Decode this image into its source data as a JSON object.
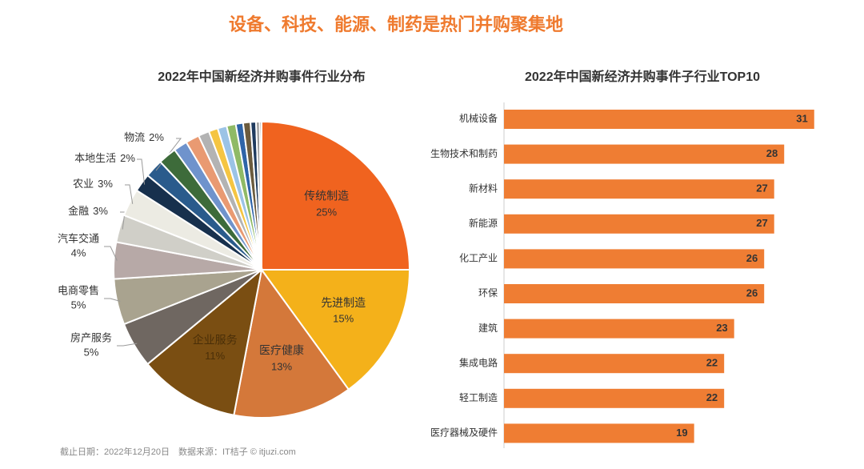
{
  "title": "设备、科技、能源、制药是热门并购聚集地",
  "footnote": "截止日期：2022年12月20日　数据来源：IT桔子 © itjuzi.com",
  "chart_data": [
    {
      "type": "pie",
      "title": "2022年中国新经济并购事件行业分布",
      "categories": [
        "传统制造",
        "先进制造",
        "医疗健康",
        "企业服务",
        "房产服务",
        "电商零售",
        "汽车交通",
        "金融",
        "农业",
        "本地生活",
        "物流",
        null,
        null,
        null,
        null,
        null,
        null,
        null,
        null,
        null,
        null,
        null,
        null
      ],
      "values": [
        25,
        15,
        13,
        11,
        5,
        5,
        4,
        3,
        3,
        2,
        2,
        2,
        1.5,
        1.5,
        1.2,
        1,
        1,
        1,
        0.8,
        0.8,
        0.6,
        0.4,
        0.2
      ],
      "value_labels": [
        "25%",
        "15%",
        "13%",
        "11%",
        "5%",
        "5%",
        "4%",
        "3%",
        "3%",
        "2%",
        "2%",
        null,
        null,
        null,
        null,
        null,
        null,
        null,
        null,
        null,
        null,
        null,
        null
      ],
      "colors": [
        "#f0631f",
        "#f4b11a",
        "#d4783a",
        "#7a4e12",
        "#6f6761",
        "#a9a38f",
        "#b7a9a7",
        "#d0cfc8",
        "#ecebe3",
        "#17304d",
        "#2a5b8c",
        "#3d6b3a",
        "#6f93cc",
        "#e99a72",
        "#b3b3b3",
        "#f5c542",
        "#9bc3e6",
        "#8fba66",
        "#2e64a8",
        "#6b5b3e",
        "#1f3b5f",
        "#999999",
        "#444444"
      ]
    },
    {
      "type": "bar",
      "orientation": "horizontal",
      "title": "2022年中国新经济并购事件子行业TOP10",
      "categories": [
        "机械设备",
        "生物技术和制药",
        "新材料",
        "新能源",
        "化工产业",
        "环保",
        "建筑",
        "集成电路",
        "轻工制造",
        "医疗器械及硬件"
      ],
      "values": [
        31,
        28,
        27,
        27,
        26,
        26,
        23,
        22,
        22,
        19
      ],
      "color": "#ef7d33",
      "xlim": [
        0,
        31.5
      ]
    }
  ]
}
